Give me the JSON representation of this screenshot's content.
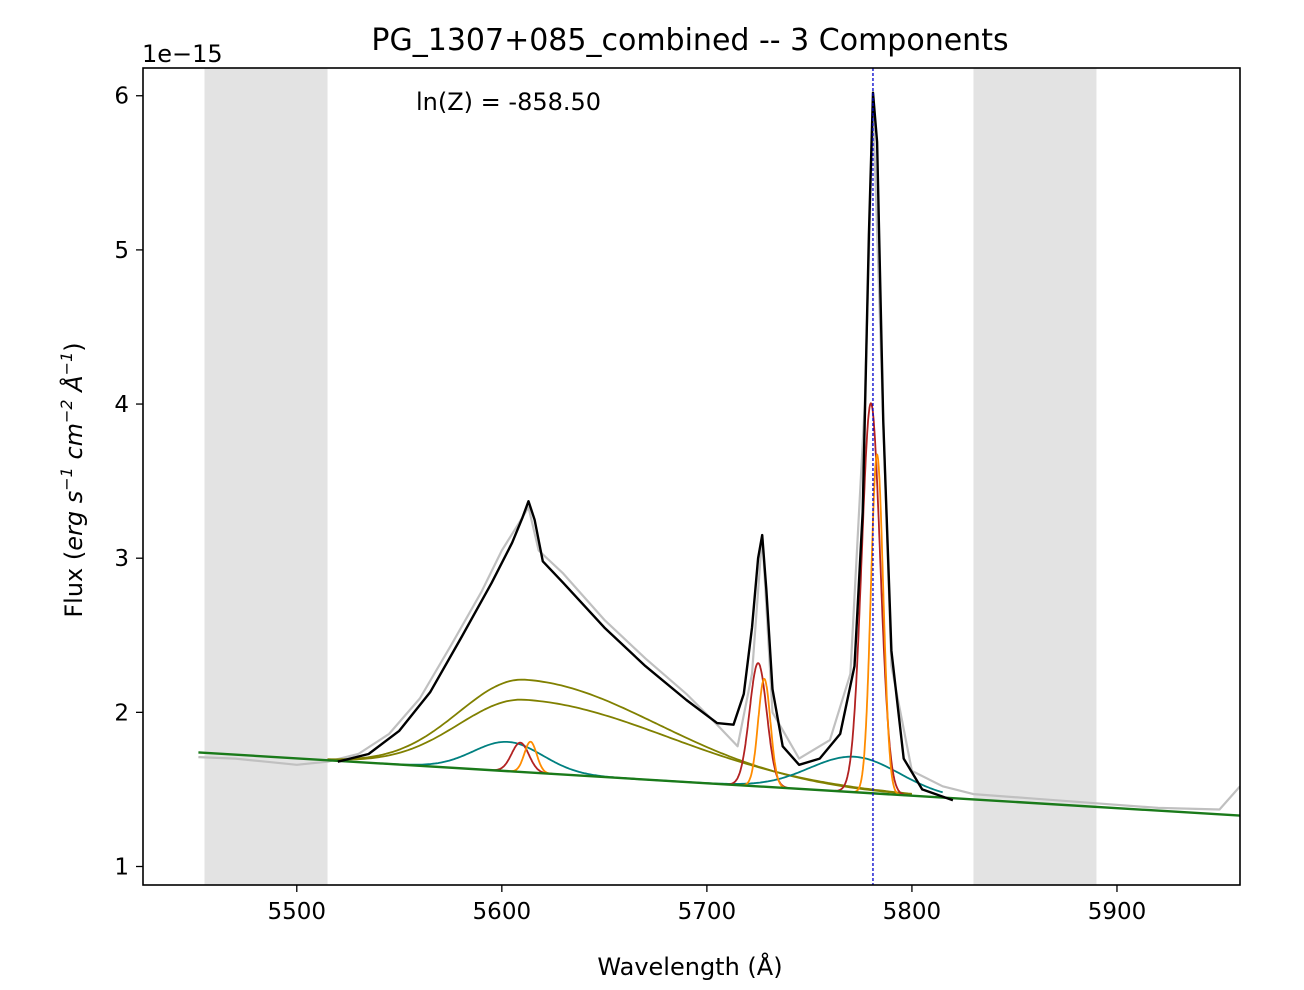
{
  "chart_data": {
    "type": "line",
    "title": "PG_1307+085_combined -- 3 Components",
    "annotation": "ln(Z) = -858.50",
    "offset_label": "1e−15",
    "xlabel": "Wavelength (Å)",
    "ylabel_parts": [
      "Flux (",
      "erg s",
      "−1",
      " cm",
      "−2",
      " Å",
      "−1",
      ")"
    ],
    "xlim": [
      5425,
      5960
    ],
    "ylim": [
      0.88,
      6.18
    ],
    "xticks": [
      5500,
      5600,
      5700,
      5800,
      5900
    ],
    "yticks": [
      1,
      2,
      3,
      4,
      5,
      6
    ],
    "grid": false,
    "shaded_regions": [
      {
        "x": [
          5455,
          5515
        ],
        "color": "#e3e3e3"
      },
      {
        "x": [
          5830,
          5890
        ],
        "color": "#e3e3e3"
      }
    ],
    "vline": {
      "x": 5781,
      "color": "#0000cc",
      "style": "dashed"
    },
    "colors": {
      "data": "#c0c0c0",
      "model": "#000000",
      "continuum": "#1a7a1a",
      "broad": "#808000",
      "intermediate": "#008080",
      "narrow_red": "#b22222",
      "narrow_orange": "#ff8c00"
    },
    "series": [
      {
        "role": "data",
        "x": [
          5452,
          5470,
          5485,
          5500,
          5515,
          5530,
          5545,
          5560,
          5575,
          5590,
          5600,
          5608,
          5613,
          5618,
          5630,
          5650,
          5670,
          5690,
          5705,
          5715,
          5722,
          5727,
          5732,
          5745,
          5760,
          5770,
          5777,
          5781,
          5785,
          5790,
          5800,
          5815,
          5830,
          5860,
          5890,
          5920,
          5950,
          5960
        ],
        "y": [
          1.71,
          1.7,
          1.68,
          1.66,
          1.68,
          1.73,
          1.86,
          2.09,
          2.43,
          2.78,
          3.05,
          3.22,
          3.33,
          3.05,
          2.9,
          2.6,
          2.35,
          2.12,
          1.92,
          1.78,
          2.25,
          3.15,
          2.0,
          1.7,
          1.82,
          2.25,
          4.0,
          5.95,
          4.3,
          2.3,
          1.62,
          1.52,
          1.47,
          1.44,
          1.41,
          1.38,
          1.37,
          1.52
        ]
      },
      {
        "role": "model",
        "x": [
          5520,
          5535,
          5550,
          5565,
          5580,
          5595,
          5605,
          5610,
          5613,
          5616,
          5620,
          5630,
          5650,
          5670,
          5690,
          5705,
          5713,
          5718,
          5722,
          5725,
          5727,
          5729,
          5732,
          5737,
          5745,
          5755,
          5765,
          5772,
          5776,
          5779,
          5781,
          5783,
          5786,
          5790,
          5796,
          5805,
          5820
        ],
        "y": [
          1.68,
          1.73,
          1.88,
          2.13,
          2.48,
          2.84,
          3.1,
          3.26,
          3.37,
          3.25,
          2.98,
          2.84,
          2.55,
          2.3,
          2.08,
          1.93,
          1.92,
          2.12,
          2.55,
          3.0,
          3.15,
          2.8,
          2.15,
          1.78,
          1.66,
          1.7,
          1.86,
          2.3,
          3.3,
          5.1,
          6.02,
          5.7,
          3.9,
          2.4,
          1.7,
          1.5,
          1.43
        ]
      },
      {
        "role": "continuum",
        "x": [
          5452,
          5960
        ],
        "y": [
          1.74,
          1.33
        ]
      },
      {
        "role": "broad_a",
        "center": 5611,
        "amplitude": 0.6,
        "sigma_left": 32,
        "sigma_right": 65,
        "x_range": [
          5515,
          5800
        ]
      },
      {
        "role": "broad_b",
        "center": 5611,
        "amplitude": 0.47,
        "sigma_left": 32,
        "sigma_right": 70,
        "x_range": [
          5515,
          5800
        ]
      },
      {
        "role": "intermediate_1",
        "center": 5603,
        "amplitude": 0.19,
        "sigma": 17,
        "x_range": [
          5540,
          5665
        ]
      },
      {
        "role": "intermediate_2",
        "center": 5772,
        "amplitude": 0.23,
        "sigma": 22,
        "x_range": [
          5660,
          5815
        ]
      },
      {
        "role": "narrow_red_1",
        "center": 5609,
        "amplitude": 0.19,
        "sigma": 4.2,
        "x_range": [
          5595,
          5625
        ]
      },
      {
        "role": "narrow_red_2",
        "center": 5725,
        "amplitude": 0.8,
        "sigma": 4.2,
        "x_range": [
          5710,
          5740
        ]
      },
      {
        "role": "narrow_red_3",
        "center": 5780,
        "amplitude": 2.53,
        "sigma": 4.5,
        "x_range": [
          5762,
          5798
        ]
      },
      {
        "role": "narrow_orange_1",
        "center": 5614,
        "amplitude": 0.2,
        "sigma": 3.0,
        "x_range": [
          5603,
          5626
        ]
      },
      {
        "role": "narrow_orange_2",
        "center": 5728,
        "amplitude": 0.7,
        "sigma": 3.0,
        "x_range": [
          5716,
          5740
        ]
      },
      {
        "role": "narrow_orange_3",
        "center": 5783,
        "amplitude": 2.2,
        "sigma": 3.0,
        "x_range": [
          5770,
          5797
        ]
      }
    ]
  }
}
